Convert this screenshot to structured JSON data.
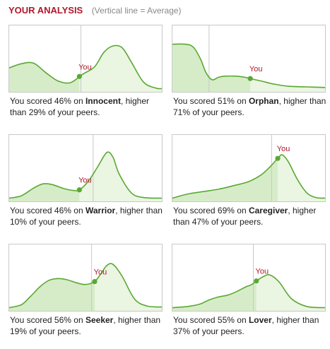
{
  "header": {
    "title": "YOUR ANALYSIS",
    "note": "(Vertical line = Average)"
  },
  "colors": {
    "title": "#b0182a",
    "line": "#5aa832",
    "fill_left": "#d6ecc8",
    "fill_right": "#eaf5e2",
    "average_line": "#c8c8c8",
    "you_label": "#b0182a"
  },
  "panels": [
    {
      "caption_prefix": "You scored 46% on ",
      "archetype": "Innocent",
      "caption_suffix": ", higher than 29% of your peers.",
      "marker_label": "You"
    },
    {
      "caption_prefix": "You scored 51% on ",
      "archetype": "Orphan",
      "caption_suffix": ", higher than 71% of your peers.",
      "marker_label": "You"
    },
    {
      "caption_prefix": "You scored 46% on ",
      "archetype": "Warrior",
      "caption_suffix": ", higher than 10% of your peers.",
      "marker_label": "You"
    },
    {
      "caption_prefix": "You scored 69% on ",
      "archetype": "Caregiver",
      "caption_suffix": ", higher than 47% of your peers.",
      "marker_label": "You"
    },
    {
      "caption_prefix": "You scored 56% on ",
      "archetype": "Seeker",
      "caption_suffix": ", higher than 19% of your peers.",
      "marker_label": "You"
    },
    {
      "caption_prefix": "You scored 55% on ",
      "archetype": "Lover",
      "caption_suffix": ", higher than 37% of your peers.",
      "marker_label": "You"
    }
  ],
  "chart_data": [
    {
      "type": "area",
      "xlim": [
        0,
        100
      ],
      "ylim": [
        0,
        1
      ],
      "x": [
        0,
        8,
        16,
        24,
        32,
        40,
        48,
        56,
        62,
        68,
        74,
        80,
        88,
        96,
        100
      ],
      "y": [
        0.38,
        0.45,
        0.46,
        0.3,
        0.16,
        0.13,
        0.27,
        0.4,
        0.64,
        0.75,
        0.72,
        0.48,
        0.14,
        0.04,
        0.03
      ],
      "average": 47,
      "you": 46,
      "percentile": 29
    },
    {
      "type": "area",
      "xlim": [
        0,
        100
      ],
      "ylim": [
        0,
        1
      ],
      "x": [
        0,
        12,
        18,
        22,
        26,
        30,
        34,
        42,
        48,
        51,
        58,
        66,
        76,
        88,
        100
      ],
      "y": [
        0.78,
        0.76,
        0.55,
        0.3,
        0.18,
        0.22,
        0.24,
        0.24,
        0.22,
        0.2,
        0.16,
        0.11,
        0.07,
        0.06,
        0.05
      ],
      "average": 24,
      "you": 51,
      "percentile": 71
    },
    {
      "type": "area",
      "xlim": [
        0,
        100
      ],
      "ylim": [
        0,
        1
      ],
      "x": [
        0,
        8,
        16,
        22,
        28,
        36,
        42,
        46,
        52,
        58,
        64,
        68,
        72,
        80,
        88,
        100
      ],
      "y": [
        0.03,
        0.07,
        0.2,
        0.27,
        0.26,
        0.19,
        0.16,
        0.17,
        0.32,
        0.56,
        0.8,
        0.72,
        0.44,
        0.12,
        0.04,
        0.03
      ],
      "average": 55,
      "you": 46,
      "percentile": 10
    },
    {
      "type": "area",
      "xlim": [
        0,
        100
      ],
      "ylim": [
        0,
        1
      ],
      "x": [
        0,
        10,
        20,
        30,
        40,
        50,
        58,
        64,
        69,
        72,
        76,
        82,
        88,
        94,
        100
      ],
      "y": [
        0.03,
        0.1,
        0.14,
        0.18,
        0.24,
        0.31,
        0.42,
        0.56,
        0.7,
        0.76,
        0.64,
        0.34,
        0.12,
        0.04,
        0.03
      ],
      "average": 65,
      "you": 69,
      "percentile": 47
    },
    {
      "type": "area",
      "xlim": [
        0,
        100
      ],
      "ylim": [
        0,
        1
      ],
      "x": [
        0,
        8,
        14,
        20,
        26,
        32,
        38,
        44,
        50,
        56,
        60,
        64,
        68,
        74,
        82,
        90,
        100
      ],
      "y": [
        0.03,
        0.08,
        0.22,
        0.38,
        0.49,
        0.52,
        0.5,
        0.45,
        0.42,
        0.47,
        0.6,
        0.74,
        0.76,
        0.56,
        0.18,
        0.06,
        0.04
      ],
      "average": 54,
      "you": 56,
      "percentile": 19
    },
    {
      "type": "area",
      "xlim": [
        0,
        100
      ],
      "ylim": [
        0,
        1
      ],
      "x": [
        0,
        10,
        18,
        24,
        30,
        36,
        42,
        48,
        52,
        55,
        60,
        64,
        70,
        78,
        88,
        100
      ],
      "y": [
        0.03,
        0.05,
        0.09,
        0.16,
        0.21,
        0.24,
        0.3,
        0.38,
        0.42,
        0.48,
        0.56,
        0.58,
        0.46,
        0.18,
        0.05,
        0.03
      ],
      "average": 53,
      "you": 55,
      "percentile": 37
    }
  ]
}
